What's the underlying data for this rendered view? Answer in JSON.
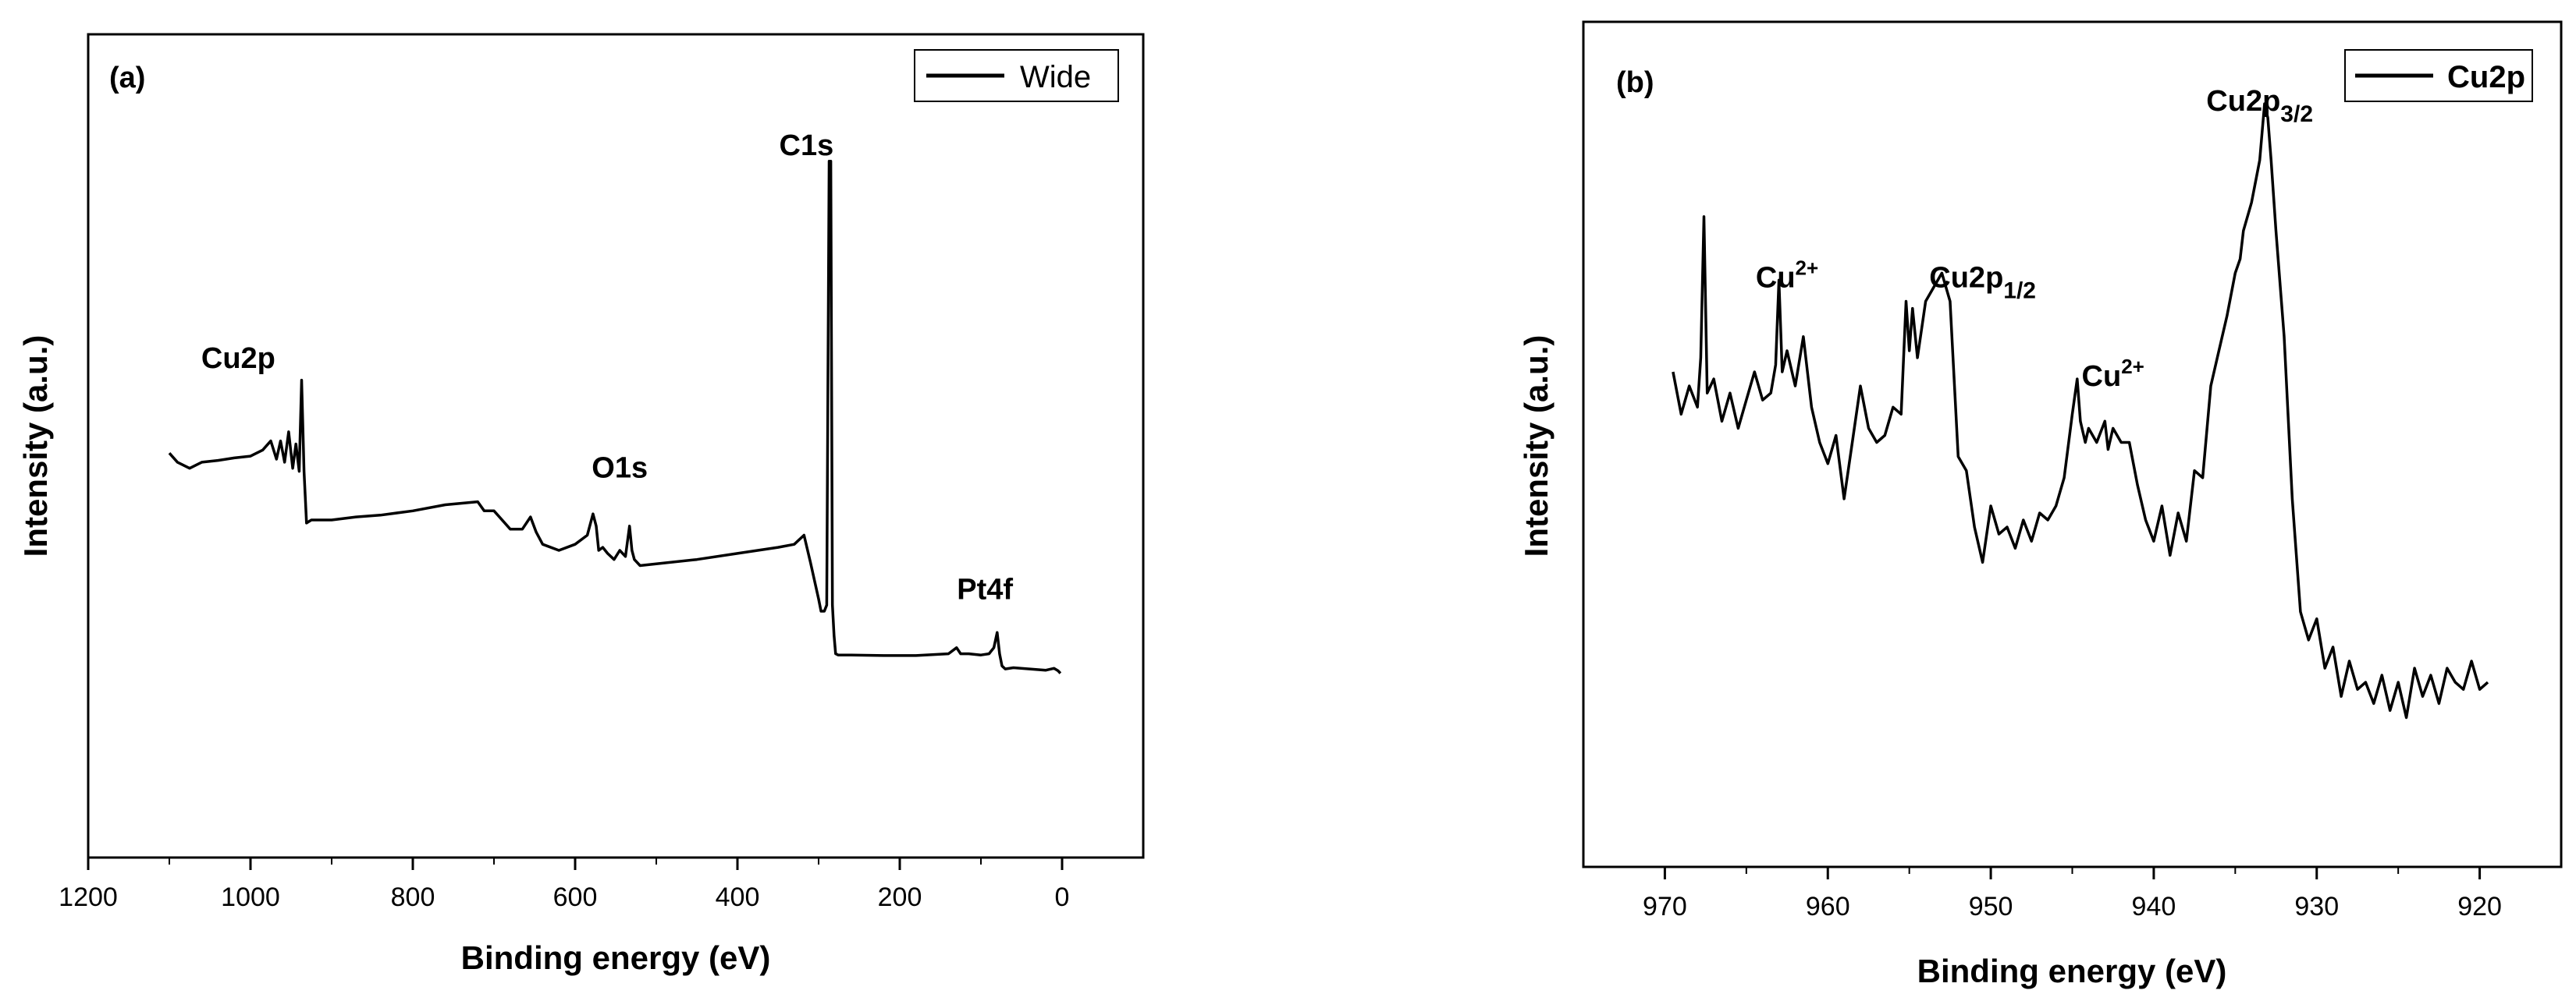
{
  "colors": {
    "background": "#ffffff",
    "line": "#000000"
  },
  "chart_data": [
    {
      "type": "line",
      "panel_label": "(a)",
      "xlabel": "Binding energy (eV)",
      "ylabel": "Intensity (a.u.)",
      "xlim": [
        1200,
        -100
      ],
      "ylim": [
        0,
        100
      ],
      "yticks_shown": false,
      "xticks": [
        1200,
        1000,
        800,
        600,
        400,
        200,
        0
      ],
      "xtick_labels": [
        "1200",
        "1000",
        "800",
        "600",
        "400",
        "200",
        "0"
      ],
      "legend": {
        "label": "Wide",
        "position": "top-right"
      },
      "annotations": [
        {
          "text": "Cu2p",
          "x": 1015,
          "y": 60
        },
        {
          "text": "O1s",
          "x": 545,
          "y": 42
        },
        {
          "text": "C1s",
          "x": 315,
          "y": 95
        },
        {
          "text": "Pt4f",
          "x": 95,
          "y": 22
        }
      ],
      "series": [
        {
          "name": "Wide",
          "x": [
            1100,
            1090,
            1075,
            1060,
            1040,
            1020,
            1000,
            985,
            975,
            968,
            963,
            958,
            953,
            948,
            944,
            940,
            937,
            934,
            931,
            925,
            900,
            870,
            840,
            800,
            760,
            720,
            712,
            700,
            680,
            665,
            655,
            648,
            640,
            620,
            600,
            585,
            578,
            574,
            571,
            566,
            560,
            552,
            545,
            538,
            533,
            530,
            527,
            520,
            500,
            450,
            400,
            350,
            330,
            318,
            310,
            300,
            297,
            293,
            290,
            287,
            285,
            283,
            281,
            279,
            276,
            260,
            220,
            180,
            140,
            130,
            125,
            115,
            100,
            90,
            84,
            80,
            77,
            74,
            70,
            60,
            40,
            20,
            10,
            5,
            2
          ],
          "y": [
            46,
            44.5,
            43.5,
            44.5,
            44.8,
            45.2,
            45.5,
            46.5,
            48,
            45,
            48,
            44.5,
            49.5,
            43.5,
            47.5,
            43,
            58,
            43,
            34.5,
            35,
            35,
            35.5,
            35.8,
            36.5,
            37.5,
            38,
            36.5,
            36.5,
            33.5,
            33.5,
            35.5,
            33,
            31,
            30,
            31,
            32.5,
            36,
            34,
            30,
            30.5,
            29.5,
            28.5,
            30,
            29,
            34,
            30,
            28.5,
            27.5,
            27.8,
            28.5,
            29.5,
            30.5,
            31,
            32.5,
            28,
            22,
            20,
            20,
            21,
            94,
            94,
            21,
            16,
            13,
            12.8,
            12.8,
            12.7,
            12.7,
            13,
            14,
            13,
            13,
            12.8,
            13,
            14,
            16.5,
            13,
            11,
            10.5,
            10.7,
            10.5,
            10.3,
            10.6,
            10.2,
            9.8
          ]
        }
      ]
    },
    {
      "type": "line",
      "panel_label": "(b)",
      "xlabel": "Binding energy (eV)",
      "ylabel": "Intensity (a.u.)",
      "xlim": [
        975,
        915
      ],
      "ylim": [
        0,
        100
      ],
      "yticks_shown": false,
      "xticks": [
        970,
        960,
        950,
        940,
        930,
        920
      ],
      "xtick_labels": [
        "970",
        "960",
        "950",
        "940",
        "930",
        "920"
      ],
      "legend": {
        "label": "Cu2p",
        "position": "top-right"
      },
      "annotations": [
        {
          "main": "Cu",
          "sup": "2+",
          "sub": "",
          "x": 962.5,
          "y": 72
        },
        {
          "main": "Cu2p",
          "sup": "",
          "sub": "1/2",
          "x": 950.5,
          "y": 72
        },
        {
          "main": "Cu",
          "sup": "2+",
          "sub": "",
          "x": 942.5,
          "y": 58
        },
        {
          "main": "Cu2p",
          "sup": "",
          "sub": "3/2",
          "x": 933.5,
          "y": 97
        }
      ],
      "series": [
        {
          "name": "Cu2p",
          "x": [
            969.5,
            969,
            968.5,
            968,
            967.8,
            967.6,
            967.4,
            967,
            966.5,
            966,
            965.5,
            965,
            964.5,
            964,
            963.5,
            963.2,
            963,
            962.8,
            962.5,
            962,
            961.5,
            961,
            960.5,
            960,
            959.5,
            959,
            958.5,
            958,
            957.5,
            957,
            956.5,
            956,
            955.5,
            955.2,
            955,
            954.8,
            954.5,
            954,
            953.5,
            953,
            952.5,
            952,
            951.5,
            951,
            950.5,
            950,
            949.5,
            949,
            948.5,
            948,
            947.5,
            947,
            946.5,
            946,
            945.5,
            945,
            944.7,
            944.5,
            944.2,
            944,
            943.5,
            943,
            942.8,
            942.5,
            942,
            941.5,
            941,
            940.5,
            940,
            939.5,
            939,
            938.5,
            938,
            937.5,
            937,
            936.5,
            936,
            935.5,
            935,
            934.7,
            934.5,
            934,
            933.5,
            933.2,
            933,
            932.8,
            932.5,
            932,
            931.5,
            931,
            930.5,
            930,
            929.5,
            929,
            928.5,
            928,
            927.5,
            927,
            926.5,
            926,
            925.5,
            925,
            924.5,
            924,
            923.5,
            923,
            922.5,
            922,
            921.5,
            921,
            920.5,
            920,
            919.5
          ],
          "y": [
            60,
            54,
            58,
            55,
            62,
            82,
            57,
            59,
            53,
            57,
            52,
            56,
            60,
            56,
            57,
            61,
            73,
            60,
            63,
            58,
            65,
            55,
            50,
            47,
            51,
            42,
            50,
            58,
            52,
            50,
            51,
            55,
            54,
            70,
            63,
            69,
            62,
            70,
            72,
            74,
            70,
            48,
            46,
            38,
            33,
            41,
            37,
            38,
            35,
            39,
            36,
            40,
            39,
            41,
            45,
            54,
            59,
            53,
            50,
            52,
            50,
            53,
            49,
            52,
            50,
            50,
            44,
            39,
            36,
            41,
            34,
            40,
            36,
            46,
            45,
            58,
            63,
            68,
            74,
            76,
            80,
            84,
            90,
            98,
            96,
            90,
            80,
            65,
            42,
            26,
            22,
            25,
            18,
            21,
            14,
            19,
            15,
            16,
            13,
            17,
            12,
            16,
            11,
            18,
            14,
            17,
            13,
            18,
            16,
            15,
            19,
            15,
            16
          ]
        }
      ]
    }
  ]
}
